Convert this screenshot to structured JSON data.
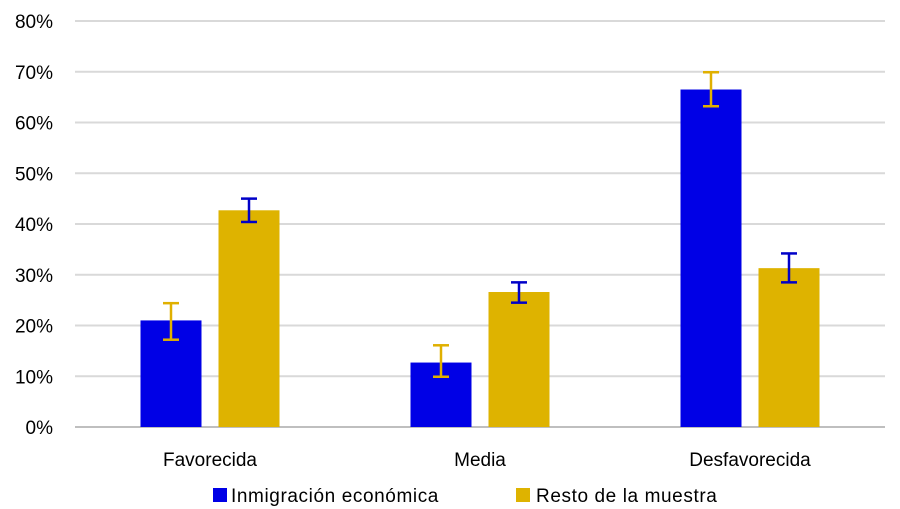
{
  "chart_data": {
    "type": "bar",
    "categories": [
      "Favorecida",
      "Media",
      "Desfavorecida"
    ],
    "series": [
      {
        "name": "Inmigración económica",
        "color": "#0000e6",
        "error_color": "#e0b000",
        "values": [
          21,
          12.7,
          66.5
        ],
        "error_low": [
          17.2,
          9.9,
          63.2
        ],
        "error_high": [
          24.4,
          16.1,
          69.9
        ]
      },
      {
        "name": "Resto de la muestra",
        "color": "#deb300",
        "error_color": "#0000c8",
        "values": [
          42.7,
          26.6,
          31.3
        ],
        "error_low": [
          40.4,
          24.5,
          28.5
        ],
        "error_high": [
          45,
          28.5,
          34.2
        ]
      }
    ],
    "ylim": [
      0,
      80
    ],
    "yticks": [
      0,
      10,
      20,
      30,
      40,
      50,
      60,
      70,
      80
    ],
    "ytick_labels": [
      "0%",
      "10%",
      "20%",
      "30%",
      "40%",
      "50%",
      "60%",
      "70%",
      "80%"
    ],
    "grid": true,
    "legend_position": "bottom",
    "title": "",
    "xlabel": "",
    "ylabel": ""
  }
}
